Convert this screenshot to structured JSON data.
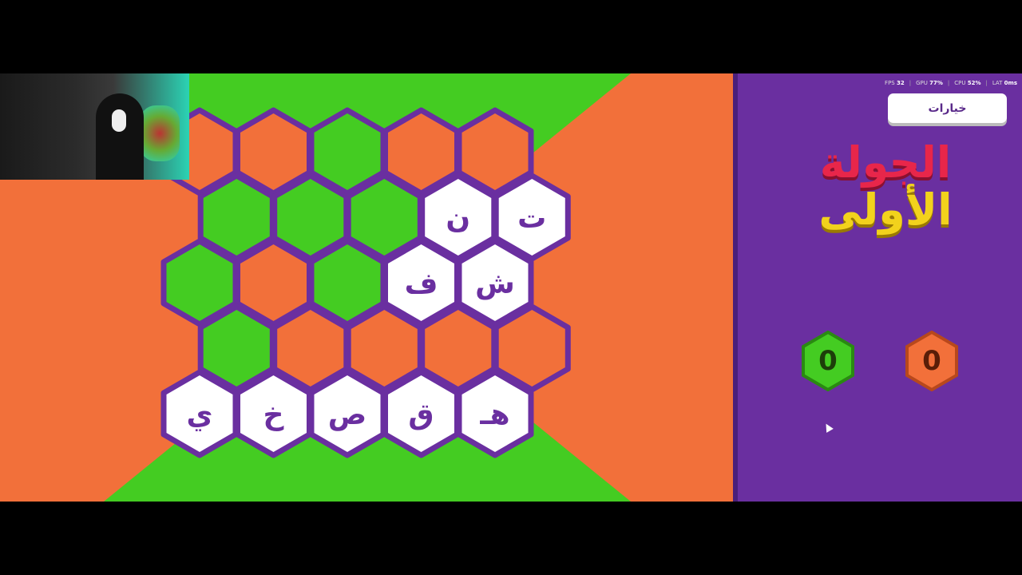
{
  "colors": {
    "green": "#44cc22",
    "orange": "#f2703a",
    "purple": "#6a2fa0",
    "white": "#ffffff",
    "title_red": "#e8264a",
    "title_yellow": "#f2d21c"
  },
  "stats": {
    "fps_label": "FPS",
    "fps": "32",
    "gpu_label": "GPU",
    "gpu": "77%",
    "cpu_label": "CPU",
    "cpu": "52%",
    "lat_label": "LAT",
    "lat": "0ms"
  },
  "options_button": "خيارات",
  "round_title": {
    "line1": "الجولة",
    "line2": "الأولى"
  },
  "scores": {
    "green": "0",
    "orange": "0"
  },
  "board": [
    [
      {
        "state": "orange",
        "letter": ""
      },
      {
        "state": "orange",
        "letter": ""
      },
      {
        "state": "green",
        "letter": ""
      },
      {
        "state": "orange",
        "letter": ""
      },
      {
        "state": "orange",
        "letter": ""
      }
    ],
    [
      {
        "state": "green",
        "letter": ""
      },
      {
        "state": "green",
        "letter": ""
      },
      {
        "state": "green",
        "letter": ""
      },
      {
        "state": "white",
        "letter": "ن"
      },
      {
        "state": "white",
        "letter": "ت"
      }
    ],
    [
      {
        "state": "green",
        "letter": ""
      },
      {
        "state": "orange",
        "letter": ""
      },
      {
        "state": "green",
        "letter": ""
      },
      {
        "state": "white",
        "letter": "ف"
      },
      {
        "state": "white",
        "letter": "ش"
      }
    ],
    [
      {
        "state": "green",
        "letter": ""
      },
      {
        "state": "orange",
        "letter": ""
      },
      {
        "state": "orange",
        "letter": ""
      },
      {
        "state": "orange",
        "letter": ""
      },
      {
        "state": "orange",
        "letter": ""
      }
    ],
    [
      {
        "state": "white",
        "letter": "ي"
      },
      {
        "state": "white",
        "letter": "خ"
      },
      {
        "state": "white",
        "letter": "ص"
      },
      {
        "state": "white",
        "letter": "ق"
      },
      {
        "state": "white",
        "letter": "هـ"
      }
    ]
  ]
}
